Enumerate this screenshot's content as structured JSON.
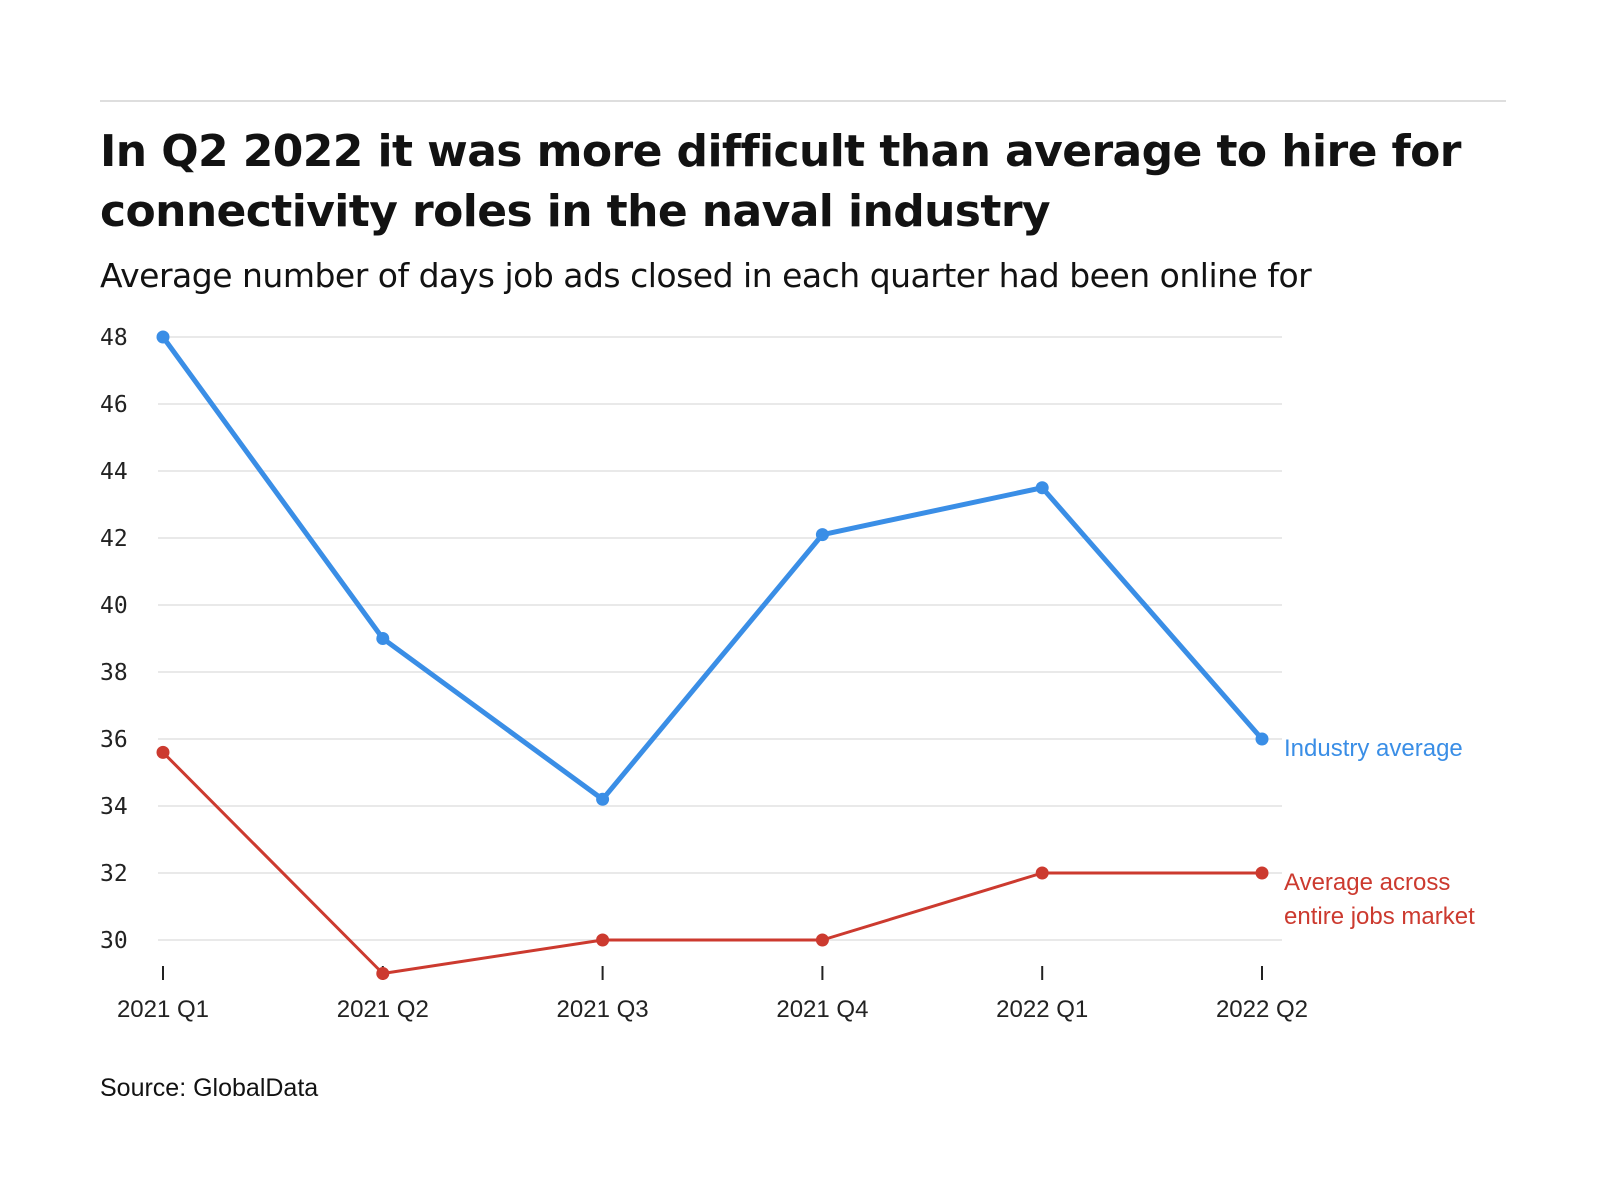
{
  "title": "In Q2 2022 it was more difficult than average to hire for connectivity roles in the naval industry",
  "subtitle": "Average number of days job ads closed in each quarter had been online for",
  "source": "Source: GlobalData",
  "colors": {
    "industry": "#3a8ee6",
    "market": "#cc3a2f",
    "grid": "#e2e2e2",
    "axis": "#222222"
  },
  "chart_data": {
    "type": "line",
    "title": "In Q2 2022 it was more difficult than average to hire for connectivity roles in the naval industry",
    "subtitle": "Average number of days job ads closed in each quarter had been online for",
    "xlabel": "",
    "ylabel": "",
    "categories": [
      "2021 Q1",
      "2021 Q2",
      "2021 Q3",
      "2021 Q4",
      "2022 Q1",
      "2022 Q2"
    ],
    "yticks": [
      30,
      32,
      34,
      36,
      38,
      40,
      42,
      44,
      46,
      48
    ],
    "ylim": [
      29,
      48
    ],
    "grid": true,
    "legend": "direct labels at right end of lines",
    "series": [
      {
        "name": "Industry average",
        "label_lines": [
          "Industry average"
        ],
        "color": "#3a8ee6",
        "values": [
          48,
          39,
          34.2,
          42.1,
          43.5,
          36
        ]
      },
      {
        "name": "Average across entire jobs market",
        "label_lines": [
          "Average across",
          "entire jobs market"
        ],
        "color": "#cc3a2f",
        "values": [
          35.6,
          29,
          30,
          30,
          32,
          32
        ]
      }
    ]
  }
}
